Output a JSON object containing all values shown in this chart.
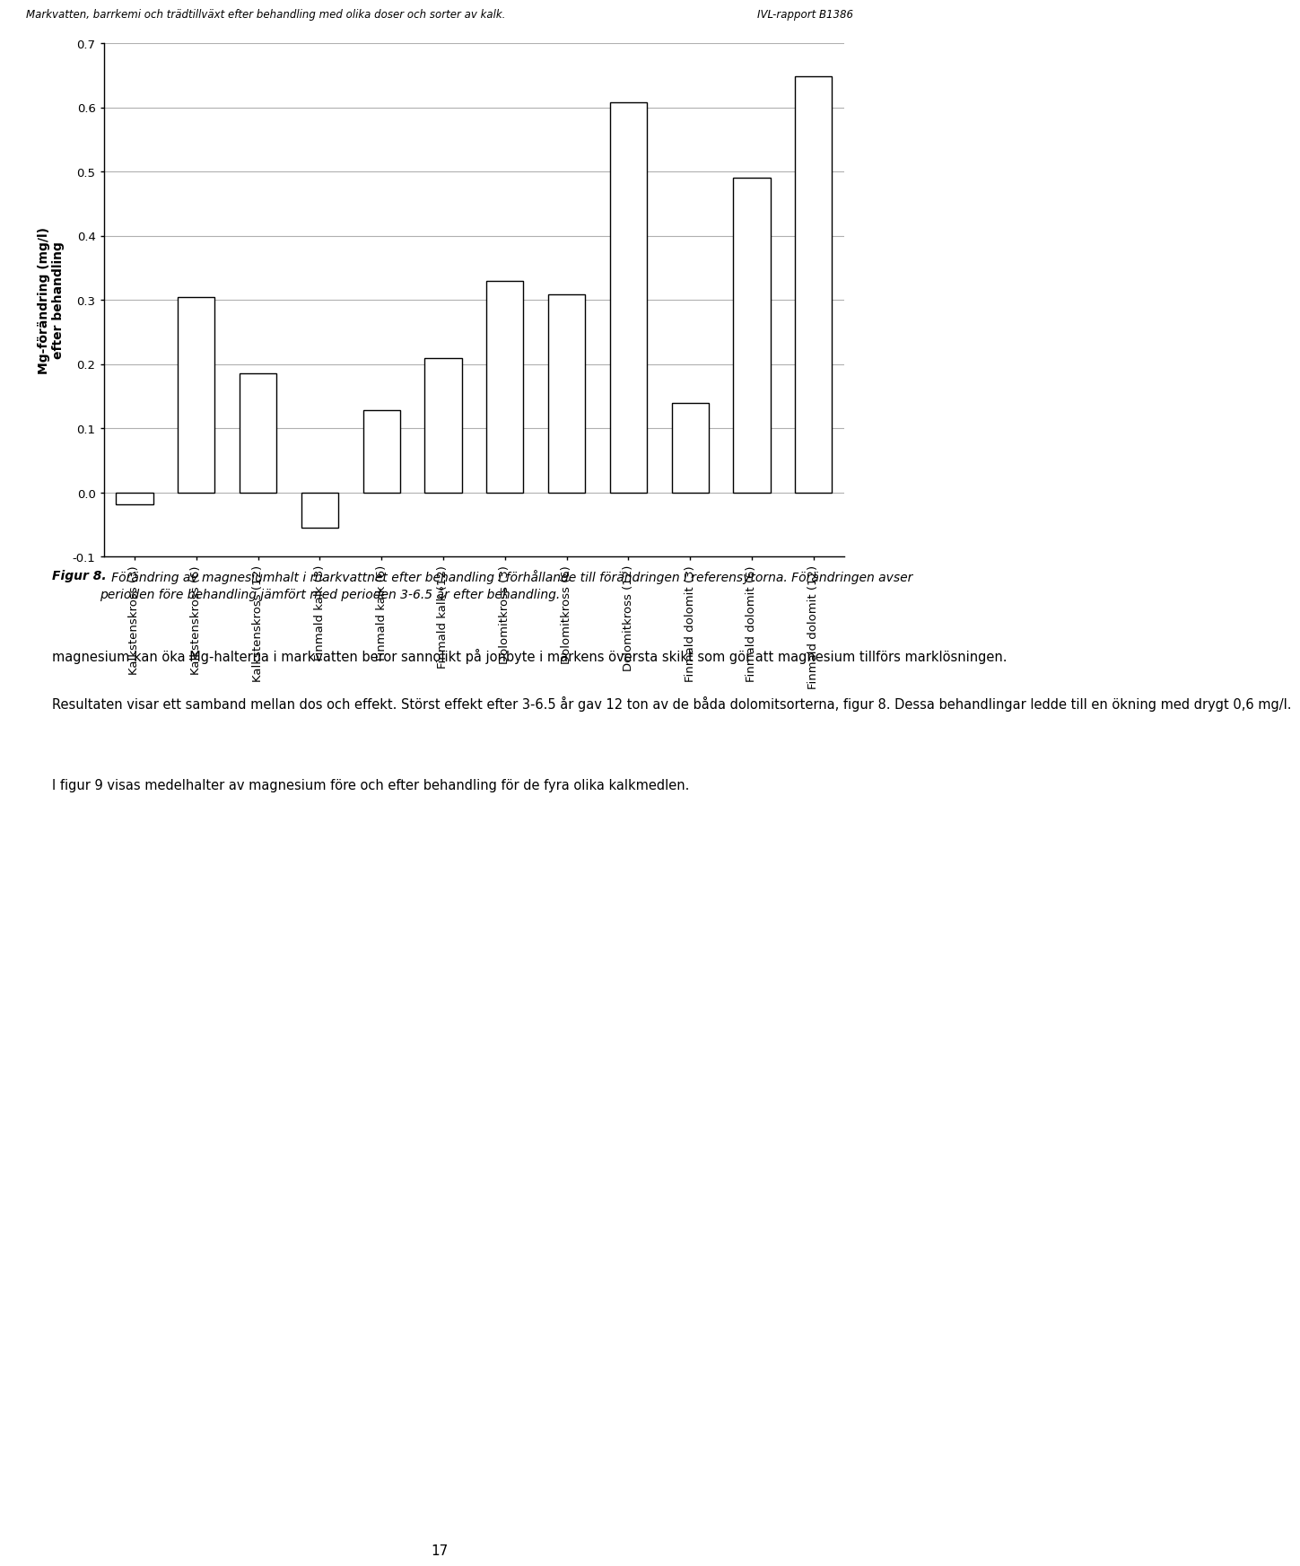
{
  "categories": [
    "Kalkstenskross (3)",
    "Kalkstenskross (6)",
    "Kalkstenskross (12)",
    "Finmald kalk (3)",
    "Finmald kalk (6)",
    "Finmald kalk (12)",
    "Dolomitkross (3)",
    "Dolomitkross (6)",
    "Dolomitkross (12)",
    "Finmald dolomit (3)",
    "Finmald dolomit (6)",
    "Finmald dolomit (12)"
  ],
  "values": [
    -0.018,
    0.305,
    0.185,
    -0.055,
    0.128,
    0.21,
    0.33,
    0.308,
    0.608,
    0.14,
    0.49,
    0.648
  ],
  "bar_color": "#ffffff",
  "bar_edgecolor": "#000000",
  "ylabel": "Mg-förändring (mg/l)\nefter behandling",
  "ylim": [
    -0.1,
    0.7
  ],
  "yticks": [
    -0.1,
    0,
    0.1,
    0.2,
    0.3,
    0.4,
    0.5,
    0.6,
    0.7
  ],
  "grid_color": "#b0b0b0",
  "background_color": "#ffffff",
  "bar_width": 0.6,
  "header_left": "Markvatten, barrkemi och trädtillväxt efter behandling med olika doser och sorter av kalk.",
  "header_right": "IVL-rapport B1386",
  "figur_text": "Figur 8.   Förändring av magnesiumhalt i markvattnet efter behandling i förhållande till förändringen i referensytorna. Förändringen avser perioden före behandling jämfört med perioden 3-6.5 år efter behandling.",
  "body_text1": "magnesium kan öka Mg-halterna i markvatten beror sannolikt på jonbyte i markens översta skikt som gör att magnesium tillförs marklösningen.",
  "body_text2": "Resultaten visar ett samband mellan dos och effekt. Störst effekt efter 3-6.5 år gav 12 ton av de båda dolomitsorterna, figur 8. Dessa behandlingar ledde till en ökning med drygt 0,6 mg/l.",
  "body_text3": "I figur 9 visas medelhalter av magnesium före och efter behandling för de fyra olika kalkmedlen.",
  "page_number": "17"
}
